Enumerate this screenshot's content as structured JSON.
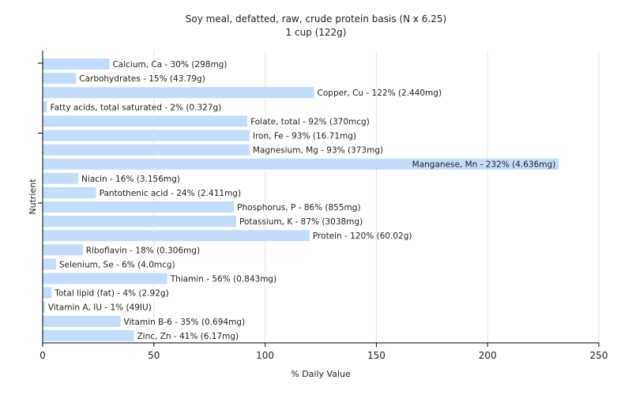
{
  "chart_data": {
    "type": "bar",
    "orientation": "horizontal",
    "title": "Soy meal, defatted, raw, crude protein basis (N x 6.25)",
    "subtitle": "1 cup (122g)",
    "xlabel": "% Daily Value",
    "ylabel": "Nutrient",
    "xlim": [
      0,
      250
    ],
    "xticks": [
      0,
      50,
      100,
      150,
      200,
      250
    ],
    "grid": true,
    "legend": "none",
    "bar_color": "#c4dcfb",
    "categories": [
      "Calcium, Ca",
      "Carbohydrates",
      "Copper, Cu",
      "Fatty acids, total saturated",
      "Folate, total",
      "Iron, Fe",
      "Magnesium, Mg",
      "Manganese, Mn",
      "Niacin",
      "Pantothenic acid",
      "Phosphorus, P",
      "Potassium, K",
      "Protein",
      "Riboflavin",
      "Selenium, Se",
      "Thiamin",
      "Total lipid (fat)",
      "Vitamin A, IU",
      "Vitamin B-6",
      "Zinc, Zn"
    ],
    "values": [
      30,
      15,
      122,
      2,
      92,
      93,
      93,
      232,
      16,
      24,
      86,
      87,
      120,
      18,
      6,
      56,
      4,
      1,
      35,
      41
    ],
    "labels": [
      "Calcium, Ca - 30% (298mg)",
      "Carbohydrates - 15% (43.79g)",
      "Copper, Cu - 122% (2.440mg)",
      "Fatty acids, total saturated - 2% (0.327g)",
      "Folate, total - 92% (370mcg)",
      "Iron, Fe - 93% (16.71mg)",
      "Magnesium, Mg - 93% (373mg)",
      "Manganese, Mn - 232% (4.636mg)",
      "Niacin - 16% (3.156mg)",
      "Pantothenic acid - 24% (2.411mg)",
      "Phosphorus, P - 86% (855mg)",
      "Potassium, K - 87% (3038mg)",
      "Protein - 120% (60.02g)",
      "Riboflavin - 18% (0.306mg)",
      "Selenium, Se - 6% (4.0mcg)",
      "Thiamin - 56% (0.843mg)",
      "Total lipid (fat) - 4% (2.92g)",
      "Vitamin A, IU - 1% (49IU)",
      "Vitamin B-6 - 35% (0.694mg)",
      "Zinc, Zn - 41% (6.17mg)"
    ]
  }
}
